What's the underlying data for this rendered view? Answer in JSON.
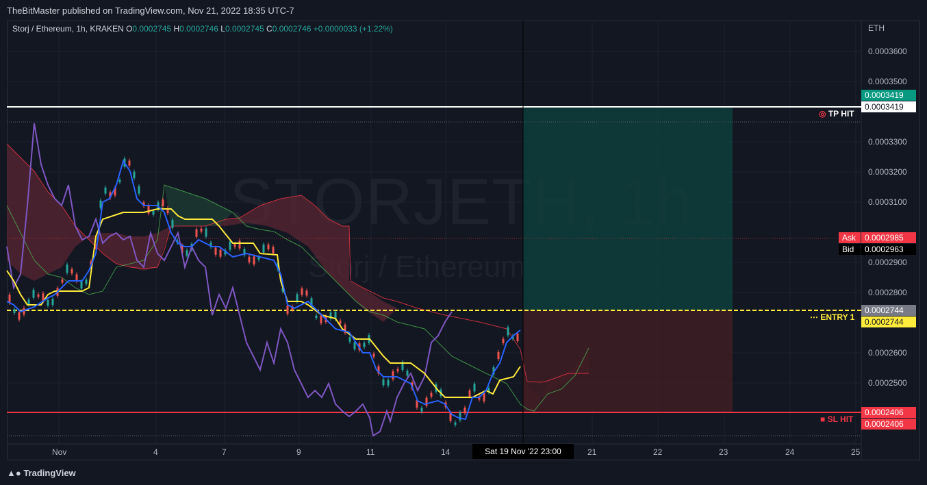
{
  "header": {
    "published": "TheBitMaster published on TradingView.com, Nov 21, 2022 18:35 UTC-7"
  },
  "legend": {
    "symbol": "Storj / Ethereum, 1h, KRAKEN",
    "o_label": "O",
    "o_value": "0.0002745",
    "h_label": "H",
    "h_value": "0.0002746",
    "l_label": "L",
    "l_value": "0.0002745",
    "c_label": "C",
    "c_value": "0.0002746",
    "change": "+0.0000033 (+1.22%)"
  },
  "watermark": {
    "ticker": "STORJETH, 1h",
    "name": "Storj / Ethereum"
  },
  "axis": {
    "currency": "ETH",
    "y_ticks": [
      "0.0003600",
      "0.0003500",
      "0.0003300",
      "0.0003200",
      "0.0003100",
      "0.0002900",
      "0.0002800",
      "0.0002600",
      "0.0002500"
    ],
    "x_ticks": [
      "Nov",
      "4",
      "7",
      "9",
      "11",
      "14",
      "21",
      "22",
      "23",
      "24",
      "25"
    ],
    "crosshair_time": "Sat 19 Nov '22   23:00"
  },
  "tags": {
    "tp_green": "0.0003419",
    "tp_white": "0.0003419",
    "ask_label": "Ask",
    "ask_value": "0.0002985",
    "bid_label": "Bid",
    "bid_value": "0.0002963",
    "entry_gray": "0.0002744",
    "entry_yellow": "0.0002744",
    "sl_1": "0.0002406",
    "sl_2": "0.0002406"
  },
  "annotations": {
    "tp_hit": "TP HIT",
    "entry": "ENTRY 1",
    "sl_hit": "SL HIT"
  },
  "colors": {
    "background": "#131722",
    "up": "#26a69a",
    "down": "#ef5350",
    "tenkan": "#2962ff",
    "kijun": "#ffeb3b",
    "lagging": "#7e57c2",
    "profit_zone": "#0d3b3a",
    "loss_zone": "#3b1c22"
  },
  "chart_data": {
    "type": "line",
    "title": "Storj / Ethereum, 1h, KRAKEN",
    "ylim": [
      0.000232,
      0.000368
    ],
    "x_labels": [
      "Nov",
      "4",
      "7",
      "9",
      "11",
      "14",
      "21",
      "22",
      "23",
      "24",
      "25"
    ],
    "levels": {
      "take_profit": 0.0003419,
      "entry": 0.0002744,
      "stop_loss": 0.0002406,
      "ask": 0.0002985,
      "bid": 0.0002963
    },
    "series": [
      {
        "values": [
          0.000278,
          0.000276,
          0.000274,
          0.000279,
          0.000285,
          0.000305,
          0.000316,
          0.000318,
          0.00031,
          0.000303,
          0.000291,
          0.000296,
          0.000294,
          0.00029,
          0.000283,
          0.000268,
          0.000279,
          0.000277,
          0.000264,
          0.000262,
          0.000256,
          0.00026,
          0.000251,
          0.000247,
          0.000245,
          0.000248,
          0.000256,
          0.000262,
          0.000268
        ]
      },
      {
        "values": [
          0.000279,
          0.000276,
          0.000275,
          0.000276,
          0.000278,
          0.000303,
          0.000314,
          0.000314,
          0.000312,
          0.000305,
          0.000302,
          0.000299,
          0.000297,
          0.000292,
          0.000288,
          0.000276,
          0.000272,
          0.00027,
          0.000264,
          0.000258,
          0.000253,
          0.00025,
          0.000247,
          0.000247,
          0.000247,
          0.00025,
          0.000253,
          0.000256
        ]
      },
      {
        "values": [
          0.000295,
          0.00034,
          0.000305,
          0.000306,
          0.0003,
          0.000297,
          0.000289,
          0.000302,
          0.000296,
          0.000296,
          0.000278,
          0.000268,
          0.00026,
          0.000252,
          0.000244,
          0.000248,
          0.000236,
          0.00025,
          0.000252,
          0.000262,
          0.000266,
          0.00027
        ]
      }
    ]
  }
}
